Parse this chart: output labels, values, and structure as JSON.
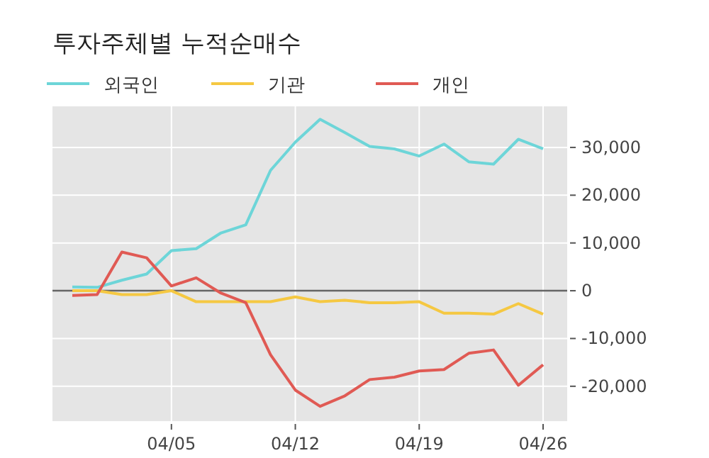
{
  "chart_data": {
    "type": "line",
    "title": "투자주체별 누적순매수",
    "categories": [
      null,
      null,
      null,
      null,
      "04/05",
      null,
      null,
      null,
      null,
      "04/12",
      null,
      null,
      null,
      null,
      "04/19",
      null,
      null,
      null,
      null,
      "04/26"
    ],
    "series": [
      {
        "name": "외국인",
        "color": "#6dd5d8",
        "values": [
          800,
          700,
          2200,
          3500,
          8400,
          8800,
          12100,
          13800,
          25200,
          31100,
          35900,
          33100,
          30200,
          29700,
          28200,
          30700,
          27000,
          26500,
          31700,
          29700
        ]
      },
      {
        "name": "기관",
        "color": "#f5c842",
        "values": [
          0,
          0,
          -800,
          -800,
          0,
          -2300,
          -2300,
          -2300,
          -2300,
          -1300,
          -2300,
          -2000,
          -2500,
          -2500,
          -2300,
          -4700,
          -4700,
          -4900,
          -2700,
          -4900
        ]
      },
      {
        "name": "개인",
        "color": "#e05a54",
        "values": [
          -1000,
          -800,
          8100,
          6900,
          1000,
          2700,
          -500,
          -2500,
          -13400,
          -20800,
          -24200,
          -22000,
          -18600,
          -18100,
          -16800,
          -16500,
          -13100,
          -12400,
          -19800,
          -15500
        ]
      }
    ],
    "ylim": [
      -27300,
      38600
    ],
    "yticks": [
      {
        "value": -20000,
        "label": "-20,000"
      },
      {
        "value": -10000,
        "label": "-10,000"
      },
      0,
      {
        "value": 10000,
        "label": "10,000"
      },
      {
        "value": 20000,
        "label": "20,000"
      },
      {
        "value": 30000,
        "label": "30,000"
      }
    ],
    "ref_lines": [
      {
        "axis": "y",
        "value": 0,
        "color": "#666666"
      }
    ],
    "grid": true,
    "legend": "top left",
    "marker": "none",
    "line_style": "solid"
  }
}
